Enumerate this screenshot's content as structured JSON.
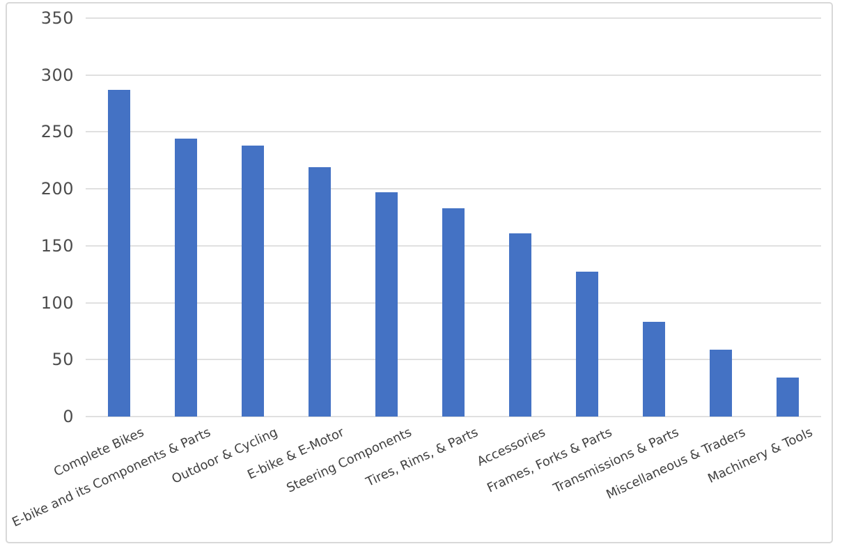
{
  "chart_data": {
    "type": "bar",
    "title": "",
    "xlabel": "",
    "ylabel": "",
    "categories": [
      "Complete Bikes",
      "E-bike and its Components & Parts",
      "Outdoor & Cycling",
      "E-bike & E-Motor",
      "Steering Components",
      "Tires, Rims, & Parts",
      "Accessories",
      "Frames, Forks & Parts",
      "Transmissions & Parts",
      "Miscellaneous & Traders",
      "Machinery & Tools"
    ],
    "values": [
      287,
      244,
      238,
      219,
      197,
      183,
      161,
      127,
      83,
      59,
      34
    ],
    "ylim": [
      0,
      350
    ],
    "yticks": [
      350,
      300,
      250,
      200,
      150,
      100,
      50,
      0
    ],
    "grid": true,
    "legend_position": "none",
    "colors": {
      "bar": "#4472c4",
      "gridline": "#e0e0e0",
      "y_tick_label": "#4d4d4d",
      "x_tick_label": "#404040",
      "frame_border": "#d8d8d8",
      "background": "#ffffff"
    }
  }
}
